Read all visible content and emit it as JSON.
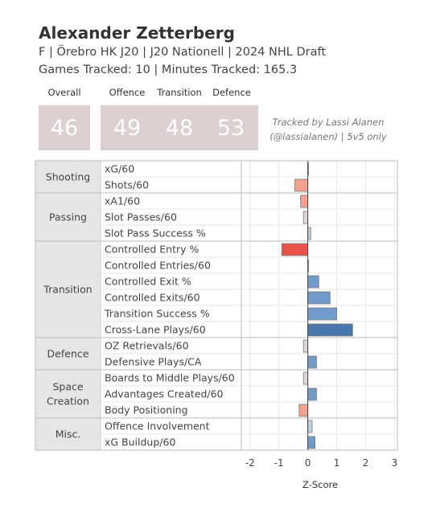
{
  "header": {
    "player_name": "Alexander Zetterberg",
    "info_line": "F | Örebro HK J20 | J20 Nationell | 2024 NHL Draft",
    "tracking_line": "Games Tracked: 10 | Minutes Tracked: 165.3"
  },
  "scores": {
    "overall_label": "Overall",
    "overall_value": "46",
    "offence_label": "Offence",
    "offence_value": "49",
    "transition_label": "Transition",
    "transition_value": "48",
    "defence_label": "Defence",
    "defence_value": "53"
  },
  "credit": {
    "line1": "Tracked by Lassi Alanen",
    "line2": "(@lassialanen) | 5v5 only"
  },
  "colors": {
    "strong_negative": "#e8544c",
    "negative": "#f4a08e",
    "slight_negative": "#e4d8d6",
    "slight_positive": "#bcd2e6",
    "positive": "#6f9ccb",
    "strong_positive": "#4a77ab",
    "group_bg": "#e6e6e6",
    "score_box": "#dcd1d0"
  },
  "chart_data": {
    "type": "bar",
    "orientation": "horizontal",
    "xlabel": "Z-Score",
    "xlim": [
      -2.3,
      3.1
    ],
    "xticks": [
      -2,
      -1,
      0,
      1,
      2,
      3
    ],
    "grid": true,
    "groups": [
      {
        "name": "Shooting",
        "metrics": [
          {
            "label": "xG/60",
            "value": 0.0
          },
          {
            "label": "Shots/60",
            "value": -0.45
          }
        ]
      },
      {
        "name": "Passing",
        "metrics": [
          {
            "label": "xA1/60",
            "value": -0.25
          },
          {
            "label": "Slot Passes/60",
            "value": -0.15
          },
          {
            "label": "Slot Pass Success %",
            "value": 0.1
          }
        ]
      },
      {
        "name": "Transition",
        "metrics": [
          {
            "label": "Controlled Entry %",
            "value": -0.9
          },
          {
            "label": "Controlled Entries/60",
            "value": 0.03
          },
          {
            "label": "Controlled Exit %",
            "value": 0.38
          },
          {
            "label": "Controlled Exits/60",
            "value": 0.77
          },
          {
            "label": "Transition Success %",
            "value": 1.0
          },
          {
            "label": "Cross-Lane Plays/60",
            "value": 1.55
          }
        ]
      },
      {
        "name": "Defence",
        "metrics": [
          {
            "label": "OZ Retrievals/60",
            "value": -0.15
          },
          {
            "label": "Defensive Plays/CA",
            "value": 0.3
          }
        ]
      },
      {
        "name": "Space Creation",
        "metrics": [
          {
            "label": "Boards to Middle Plays/60",
            "value": -0.15
          },
          {
            "label": "Advantages Created/60",
            "value": 0.3
          },
          {
            "label": "Body Positioning",
            "value": -0.3
          }
        ]
      },
      {
        "name": "Misc.",
        "metrics": [
          {
            "label": "Offence Involvement",
            "value": 0.15
          },
          {
            "label": "xG Buildup/60",
            "value": 0.25
          }
        ]
      }
    ]
  }
}
